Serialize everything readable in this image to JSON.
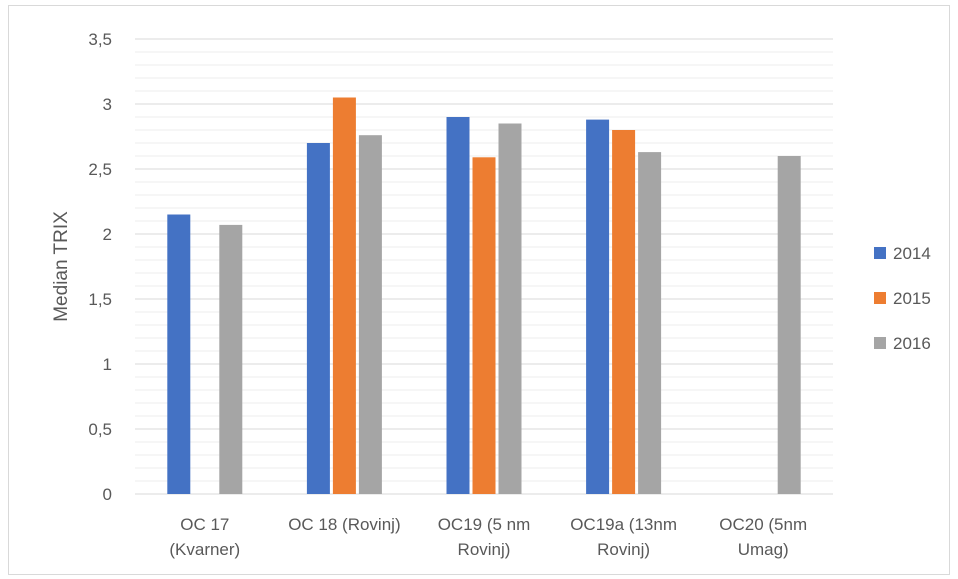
{
  "chart_data": {
    "type": "bar",
    "ylabel": "Median TRIX",
    "ylim": [
      0,
      3.5
    ],
    "y_major_step": 0.5,
    "y_minor_step": 0.1,
    "y_tick_labels": [
      "0",
      "0,5",
      "1",
      "1,5",
      "2",
      "2,5",
      "3",
      "3,5"
    ],
    "grid": true,
    "legend": "right",
    "categories": [
      [
        "OC 17",
        "(Kvarner)"
      ],
      [
        "OC 18 (Rovinj)"
      ],
      [
        "OC19 (5 nm",
        "Rovinj)"
      ],
      [
        "OC19a (13nm",
        "Rovinj)"
      ],
      [
        "OC20 (5nm",
        "Umag)"
      ]
    ],
    "series": [
      {
        "name": "2014",
        "color": "#4472c4",
        "values": [
          2.15,
          2.7,
          2.9,
          2.88,
          null
        ]
      },
      {
        "name": "2015",
        "color": "#ed7d31",
        "values": [
          null,
          3.05,
          2.59,
          2.8,
          null
        ]
      },
      {
        "name": "2016",
        "color": "#a5a5a5",
        "values": [
          2.07,
          2.76,
          2.85,
          2.63,
          2.6
        ]
      }
    ]
  }
}
